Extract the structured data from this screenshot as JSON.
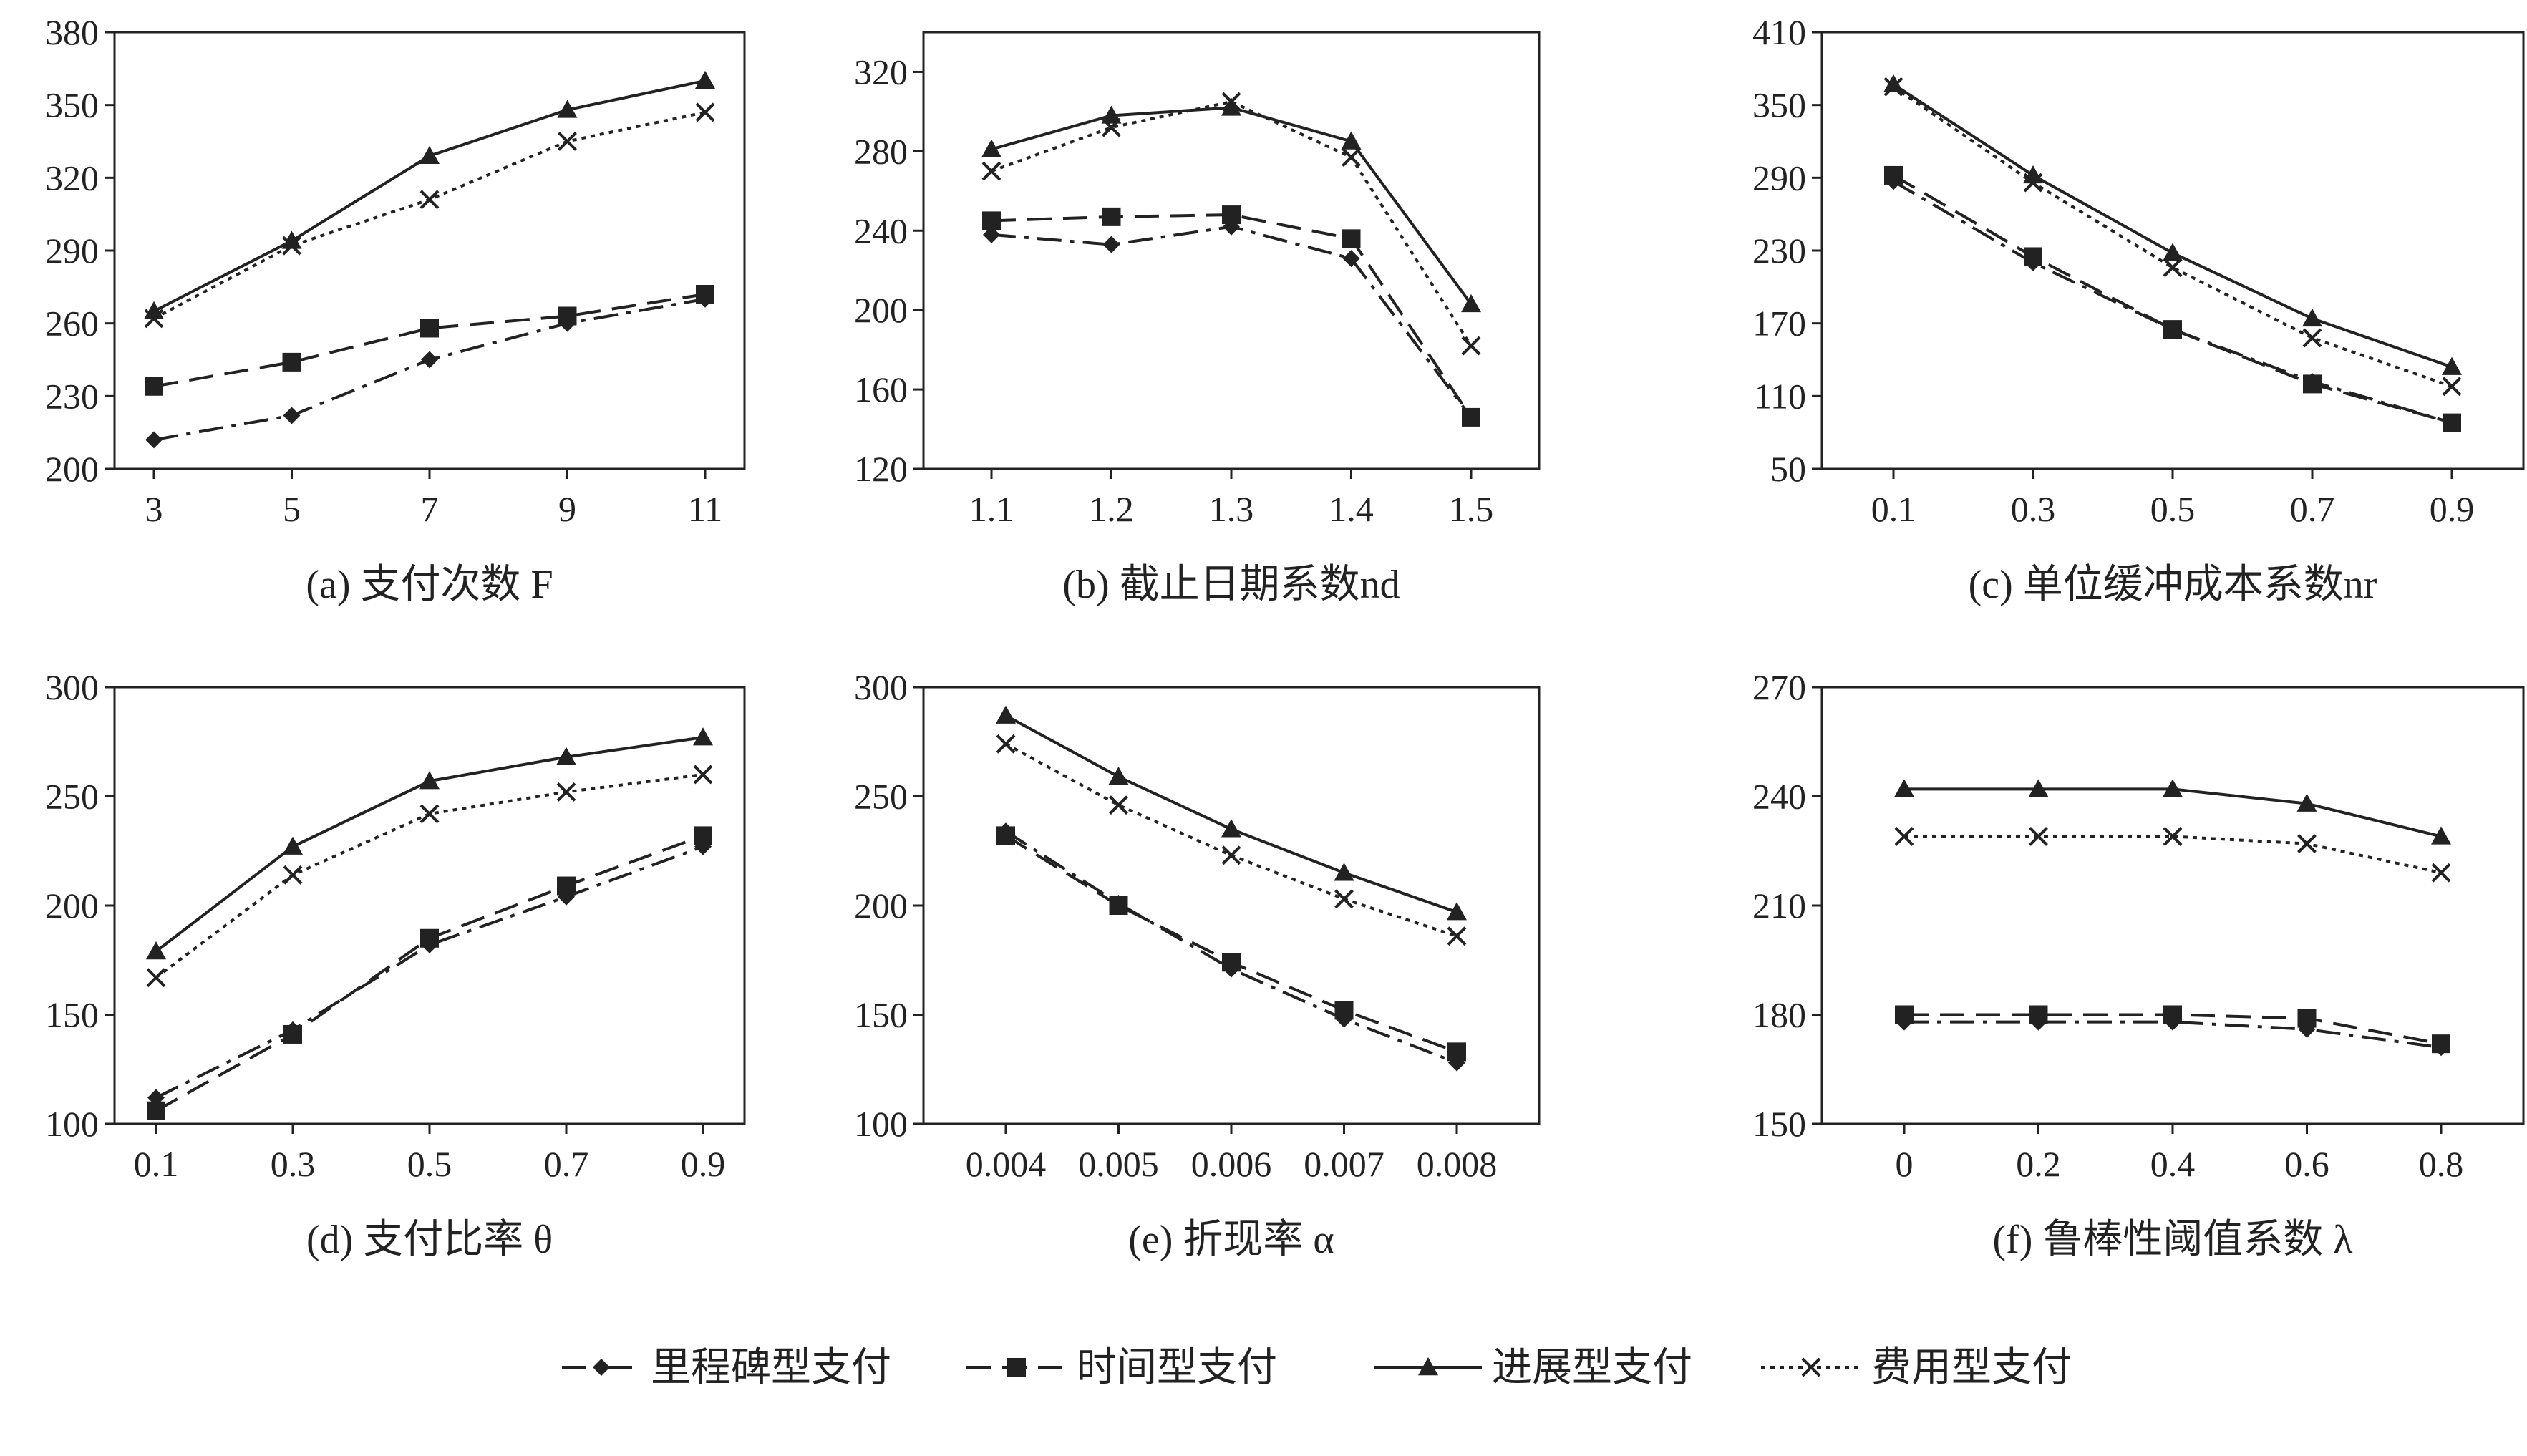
{
  "chart_data": [
    {
      "type": "line",
      "caption": "(a) 支付次数 F",
      "x": [
        "3",
        "5",
        "7",
        "9",
        "11"
      ],
      "ylim": [
        200,
        380
      ],
      "yticks": [
        200,
        230,
        260,
        290,
        320,
        350,
        380
      ],
      "series": [
        {
          "name": "里程碑型支付",
          "values": [
            212,
            222,
            245,
            260,
            270
          ]
        },
        {
          "name": "时间型支付",
          "values": [
            234,
            244,
            258,
            263,
            272
          ]
        },
        {
          "name": "进展型支付",
          "values": [
            265,
            294,
            329,
            348,
            360
          ]
        },
        {
          "name": "费用型支付",
          "values": [
            262,
            292,
            311,
            335,
            347
          ]
        }
      ]
    },
    {
      "type": "line",
      "caption": "(b) 截止日期系数nd",
      "x": [
        "1.1",
        "1.2",
        "1.3",
        "1.4",
        "1.5"
      ],
      "ylim": [
        120,
        340
      ],
      "yticks": [
        120,
        160,
        200,
        240,
        280,
        320
      ],
      "series": [
        {
          "name": "里程碑型支付",
          "values": [
            238,
            233,
            242,
            226,
            146
          ]
        },
        {
          "name": "时间型支付",
          "values": [
            245,
            247,
            248,
            236,
            146
          ]
        },
        {
          "name": "进展型支付",
          "values": [
            281,
            298,
            302,
            285,
            203
          ]
        },
        {
          "name": "费用型支付",
          "values": [
            270,
            292,
            305,
            277,
            182
          ]
        }
      ]
    },
    {
      "type": "line",
      "caption": "(c) 单位缓冲成本系数nr",
      "x": [
        "0.1",
        "0.3",
        "0.5",
        "0.7",
        "0.9"
      ],
      "ylim": [
        50,
        410
      ],
      "yticks": [
        50,
        110,
        170,
        230,
        290,
        350,
        410
      ],
      "series": [
        {
          "name": "里程碑型支付",
          "values": [
            287,
            220,
            165,
            122,
            88
          ]
        },
        {
          "name": "时间型支付",
          "values": [
            292,
            225,
            165,
            120,
            88
          ]
        },
        {
          "name": "进展型支付",
          "values": [
            367,
            292,
            228,
            174,
            134
          ]
        },
        {
          "name": "费用型支付",
          "values": [
            365,
            286,
            216,
            158,
            118
          ]
        }
      ]
    },
    {
      "type": "line",
      "caption": "(d) 支付比率 θ",
      "x": [
        "0.1",
        "0.3",
        "0.5",
        "0.7",
        "0.9"
      ],
      "ylim": [
        100,
        300
      ],
      "yticks": [
        100,
        150,
        200,
        250,
        300
      ],
      "series": [
        {
          "name": "里程碑型支付",
          "values": [
            112,
            143,
            182,
            204,
            227
          ]
        },
        {
          "name": "时间型支付",
          "values": [
            106,
            141,
            185,
            209,
            232
          ]
        },
        {
          "name": "进展型支付",
          "values": [
            179,
            227,
            257,
            268,
            277
          ]
        },
        {
          "name": "费用型支付",
          "values": [
            167,
            214,
            242,
            252,
            260
          ]
        }
      ]
    },
    {
      "type": "line",
      "caption": "(e) 折现率 α",
      "x": [
        "0.004",
        "0.005",
        "0.006",
        "0.007",
        "0.008"
      ],
      "ylim": [
        100,
        300
      ],
      "yticks": [
        100,
        150,
        200,
        250,
        300
      ],
      "series": [
        {
          "name": "里程碑型支付",
          "values": [
            234,
            201,
            171,
            148,
            128
          ]
        },
        {
          "name": "时间型支付",
          "values": [
            232,
            200,
            174,
            152,
            133
          ]
        },
        {
          "name": "进展型支付",
          "values": [
            287,
            259,
            235,
            215,
            197
          ]
        },
        {
          "name": "费用型支付",
          "values": [
            274,
            246,
            223,
            203,
            186
          ]
        }
      ]
    },
    {
      "type": "line",
      "caption": "(f) 鲁棒性阈值系数 λ",
      "x": [
        "0",
        "0.2",
        "0.4",
        "0.6",
        "0.8"
      ],
      "ylim": [
        150,
        270
      ],
      "yticks": [
        150,
        180,
        210,
        240,
        270
      ],
      "series": [
        {
          "name": "里程碑型支付",
          "values": [
            178,
            178,
            178,
            176,
            171
          ]
        },
        {
          "name": "时间型支付",
          "values": [
            180,
            180,
            180,
            179,
            172
          ]
        },
        {
          "name": "进展型支付",
          "values": [
            242,
            242,
            242,
            238,
            229
          ]
        },
        {
          "name": "费用型支付",
          "values": [
            229,
            229,
            229,
            227,
            219
          ]
        }
      ]
    }
  ],
  "legend": {
    "placement": "bottom",
    "items": [
      {
        "label": "里程碑型支付",
        "marker": "diamond",
        "dash": "dash-dot"
      },
      {
        "label": "时间型支付",
        "marker": "square",
        "dash": "dashed"
      },
      {
        "label": "进展型支付",
        "marker": "triangle",
        "dash": "solid"
      },
      {
        "label": "费用型支付",
        "marker": "cross",
        "dash": "dotted"
      }
    ]
  },
  "colors": {
    "line": "#222222",
    "background": "#ffffff"
  }
}
